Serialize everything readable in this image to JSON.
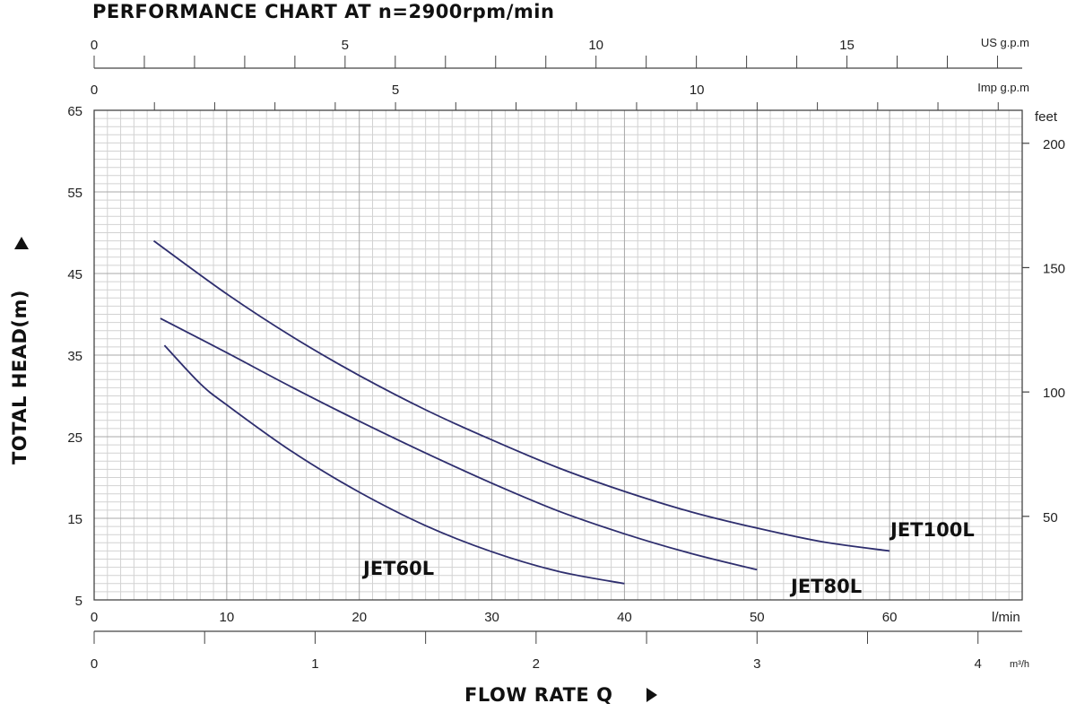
{
  "chart_data": {
    "type": "line",
    "title": "PERFORMANCE CHART AT n=2900rpm/min",
    "ylabel": "TOTAL HEAD(m)",
    "xlabel": "FLOW RATE Q",
    "x_unit": "l/min",
    "y_unit": "m",
    "xlim": [
      0,
      70
    ],
    "ylim": [
      5,
      65
    ],
    "x_ticks": [
      0,
      10,
      20,
      30,
      40,
      50,
      60
    ],
    "y_ticks": [
      65,
      55,
      45,
      35,
      25,
      15,
      5
    ],
    "grid": true,
    "secondary_axes": {
      "us_gpm": {
        "unit": "US g.p.m",
        "ticks": [
          0,
          5,
          10,
          15
        ],
        "factor": 0.264172
      },
      "imp_gpm": {
        "unit": "Imp g.p.m",
        "ticks": [
          0,
          5,
          10
        ],
        "factor": 0.219969
      },
      "feet": {
        "unit": "feet",
        "ticks": [
          200,
          150,
          100,
          50
        ],
        "factor": 3.28084
      },
      "m3h": {
        "unit": "m³/h",
        "ticks": [
          0,
          1,
          2,
          3,
          4
        ],
        "factor": 0.06
      }
    },
    "series": [
      {
        "name": "JET100L",
        "color": "#2e2e6e",
        "x": [
          4.5,
          10,
          15,
          20,
          25,
          30,
          35,
          40,
          45,
          50,
          55,
          60
        ],
        "y": [
          49,
          42.5,
          37.2,
          32.5,
          28.3,
          24.6,
          21.2,
          18.3,
          15.8,
          13.8,
          12.1,
          11
        ]
      },
      {
        "name": "JET80L",
        "color": "#2e2e6e",
        "x": [
          5,
          10,
          15,
          20,
          25,
          30,
          35,
          40,
          45,
          50
        ],
        "y": [
          39.5,
          35.3,
          31,
          26.9,
          23,
          19.3,
          15.9,
          13.1,
          10.7,
          8.7
        ]
      },
      {
        "name": "JET60L",
        "color": "#2e2e6e",
        "x": [
          5.3,
          8,
          10,
          15,
          20,
          25,
          30,
          35,
          40
        ],
        "y": [
          36.2,
          31.5,
          28.9,
          23.1,
          18.2,
          14.1,
          10.9,
          8.5,
          7
        ]
      }
    ]
  }
}
